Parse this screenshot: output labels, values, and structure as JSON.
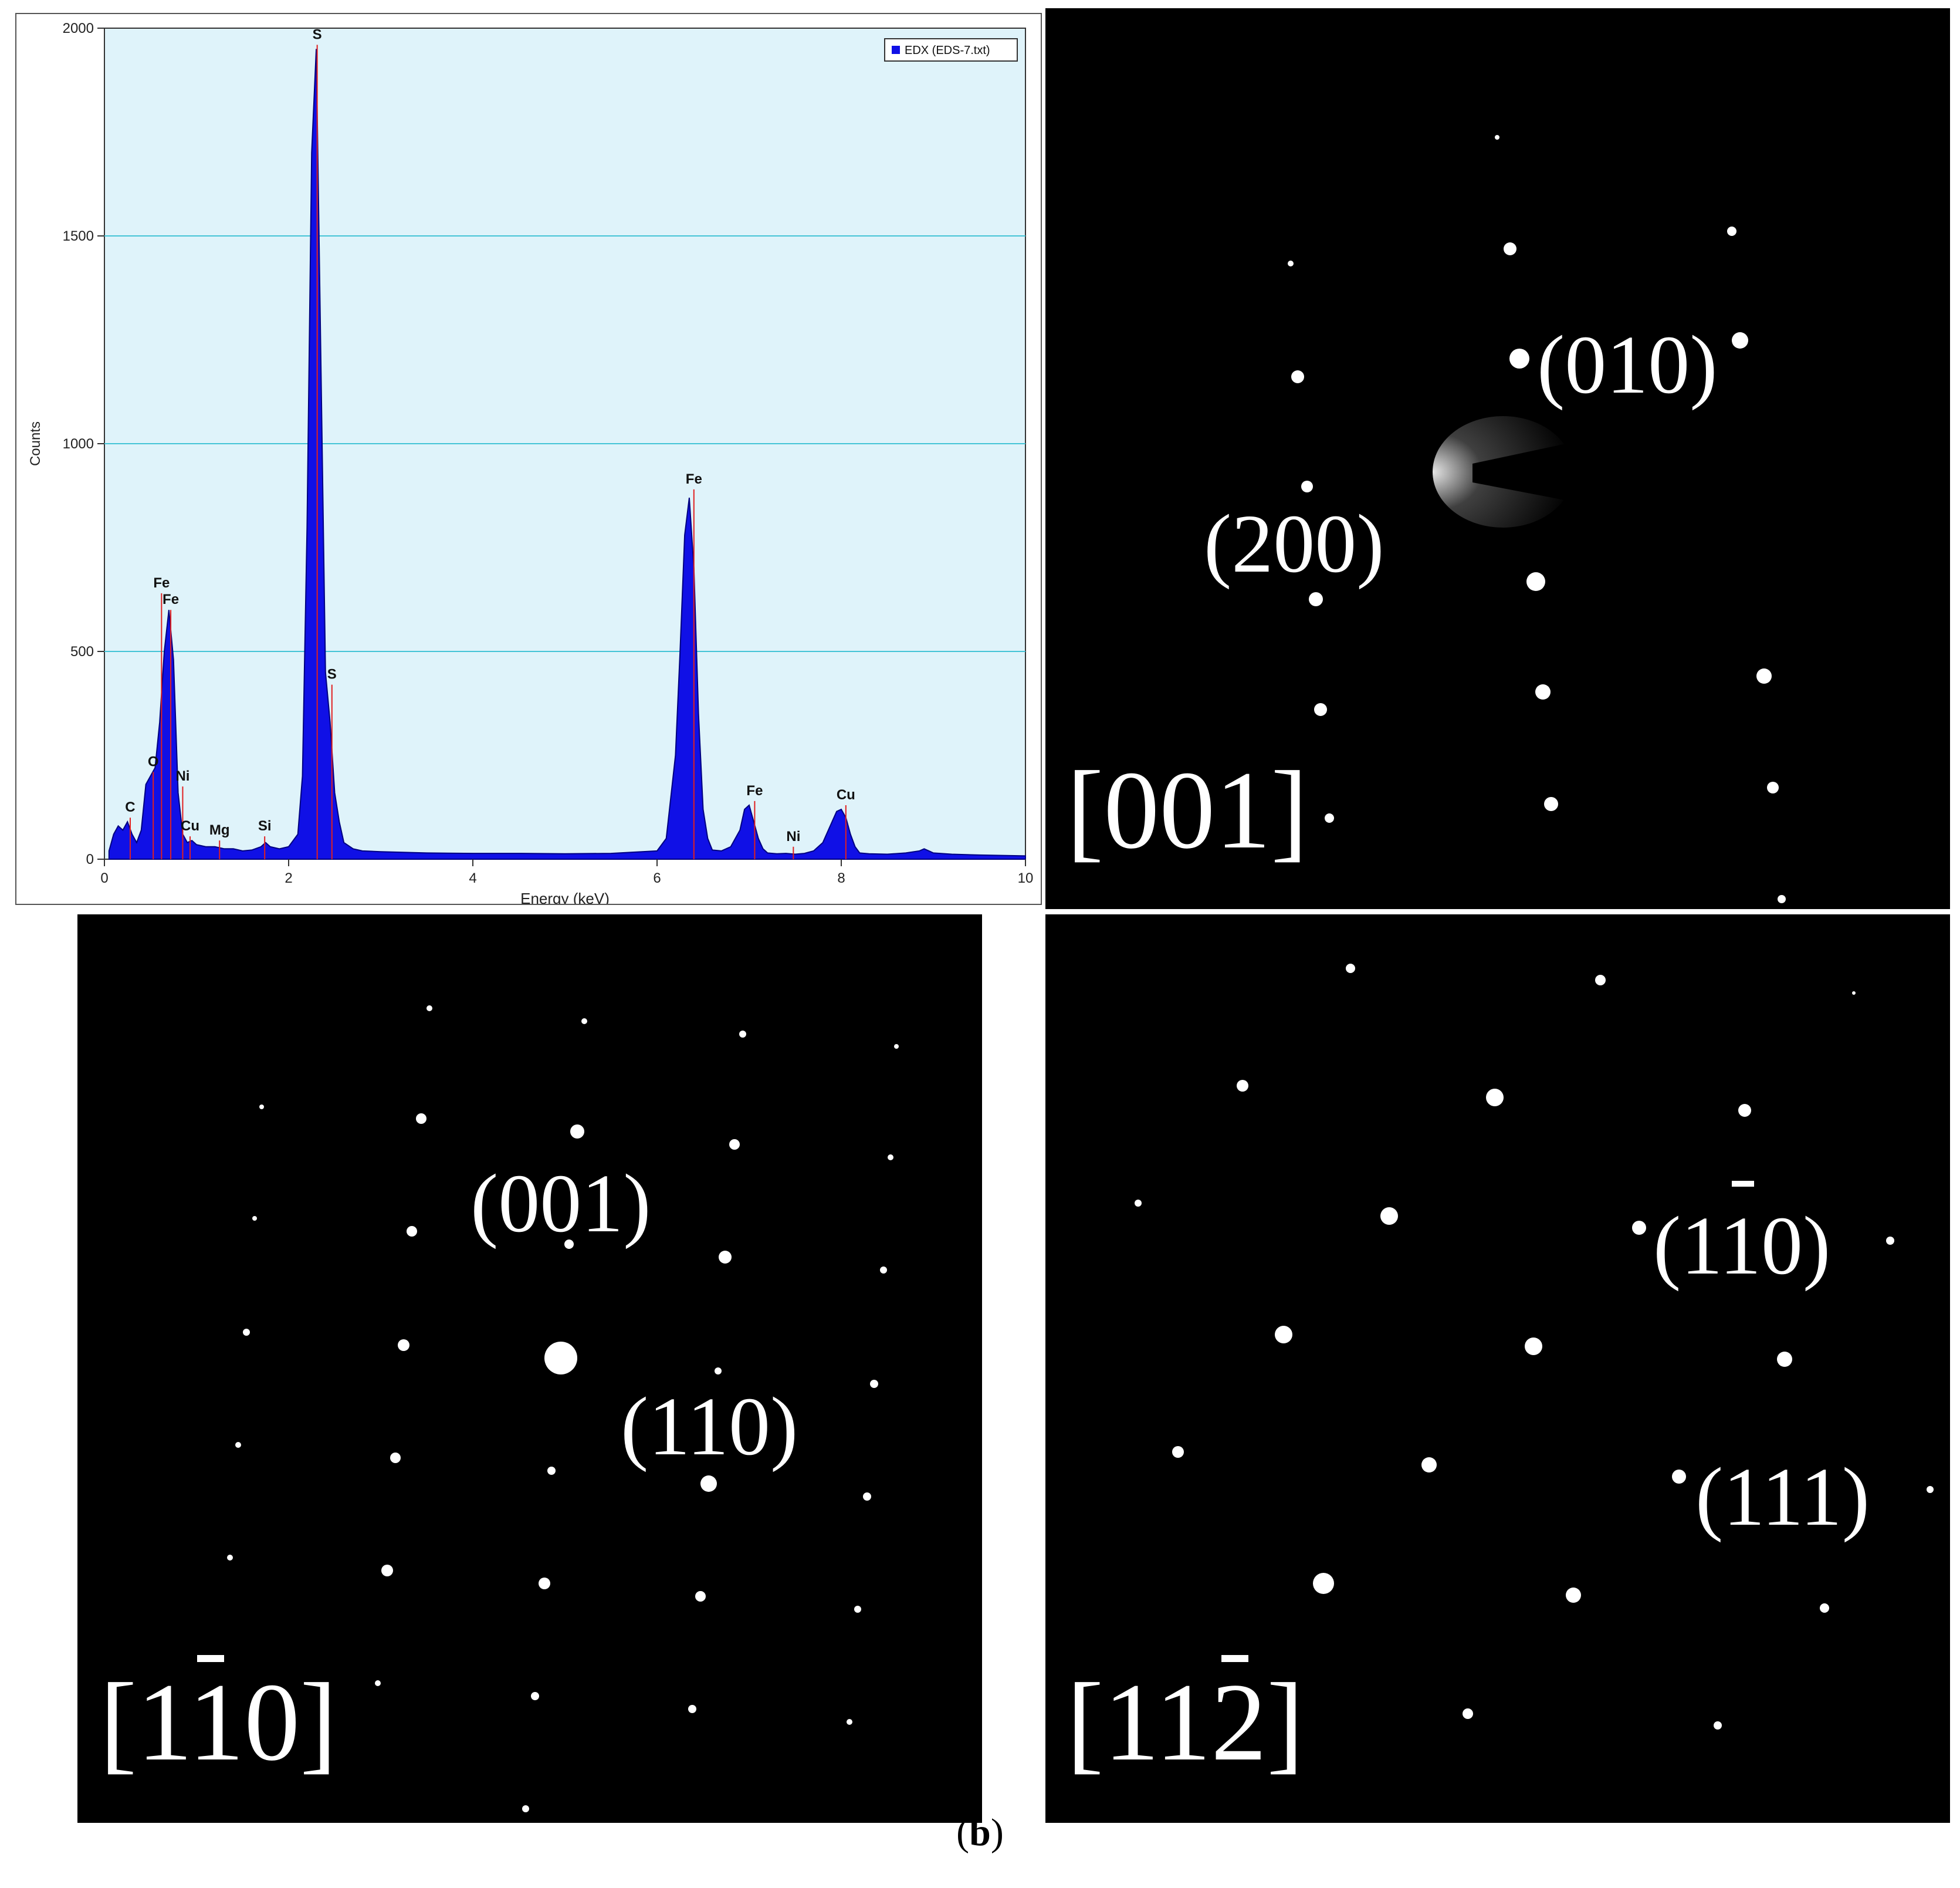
{
  "figure": {
    "caption_open": "(",
    "caption_letter": "b",
    "caption_close": ")"
  },
  "colors": {
    "plot_bg": "#dff3fa",
    "grid": "#44c4d6",
    "spectrum": "#1010e6",
    "spectrum_edge": "#000080",
    "peak_line": "#e02020"
  },
  "chart_data": {
    "type": "area",
    "xlabel": "Energy (keV)",
    "ylabel": "Counts",
    "xlim": [
      0,
      10
    ],
    "ylim": [
      0,
      2000
    ],
    "xticks": [
      0,
      2,
      4,
      6,
      8,
      10
    ],
    "yticks": [
      0,
      500,
      1000,
      1500,
      2000
    ],
    "grid": true,
    "legend_position": "top-right",
    "series": [
      {
        "name": "EDX (EDS-7.txt)",
        "x": [
          0.05,
          0.1,
          0.15,
          0.2,
          0.25,
          0.3,
          0.35,
          0.4,
          0.45,
          0.5,
          0.55,
          0.6,
          0.65,
          0.7,
          0.75,
          0.8,
          0.85,
          0.9,
          0.95,
          1.0,
          1.1,
          1.2,
          1.3,
          1.4,
          1.5,
          1.6,
          1.7,
          1.75,
          1.8,
          1.9,
          2.0,
          2.1,
          2.15,
          2.2,
          2.25,
          2.3,
          2.35,
          2.4,
          2.45,
          2.5,
          2.55,
          2.6,
          2.7,
          2.8,
          3.0,
          3.5,
          4.0,
          4.5,
          5.0,
          5.5,
          6.0,
          6.1,
          6.2,
          6.25,
          6.3,
          6.35,
          6.4,
          6.45,
          6.5,
          6.55,
          6.6,
          6.7,
          6.8,
          6.9,
          6.95,
          7.0,
          7.05,
          7.1,
          7.15,
          7.2,
          7.3,
          7.4,
          7.5,
          7.6,
          7.7,
          7.8,
          7.9,
          7.95,
          8.0,
          8.05,
          8.1,
          8.15,
          8.2,
          8.3,
          8.5,
          8.7,
          8.85,
          8.9,
          8.95,
          9.0,
          9.2,
          9.5,
          10.0
        ],
        "y": [
          20,
          60,
          80,
          70,
          90,
          60,
          40,
          70,
          180,
          200,
          220,
          330,
          500,
          600,
          480,
          160,
          60,
          40,
          45,
          35,
          30,
          30,
          25,
          25,
          20,
          22,
          30,
          40,
          30,
          25,
          30,
          60,
          200,
          800,
          1700,
          1950,
          1200,
          450,
          330,
          160,
          90,
          40,
          25,
          20,
          18,
          15,
          14,
          14,
          13,
          14,
          20,
          50,
          250,
          500,
          780,
          870,
          700,
          350,
          120,
          50,
          22,
          20,
          30,
          70,
          120,
          130,
          90,
          50,
          25,
          15,
          13,
          14,
          12,
          14,
          20,
          40,
          90,
          115,
          120,
          100,
          60,
          30,
          15,
          13,
          12,
          15,
          20,
          25,
          20,
          15,
          12,
          10,
          8
        ]
      }
    ],
    "peak_labels": [
      {
        "label": "C",
        "x": 0.28,
        "y": 100
      },
      {
        "label": "Fe",
        "x": 0.62,
        "y": 640
      },
      {
        "label": "Fe",
        "x": 0.72,
        "y": 600
      },
      {
        "label": "O",
        "x": 0.53,
        "y": 210
      },
      {
        "label": "Ni",
        "x": 0.85,
        "y": 175
      },
      {
        "label": "Cu",
        "x": 0.93,
        "y": 55
      },
      {
        "label": "Mg",
        "x": 1.25,
        "y": 45
      },
      {
        "label": "Si",
        "x": 1.74,
        "y": 55
      },
      {
        "label": "S",
        "x": 2.31,
        "y": 1960
      },
      {
        "label": "S",
        "x": 2.47,
        "y": 420
      },
      {
        "label": "Fe",
        "x": 6.4,
        "y": 890
      },
      {
        "label": "Fe",
        "x": 7.06,
        "y": 140
      },
      {
        "label": "Ni",
        "x": 7.48,
        "y": 30
      },
      {
        "label": "Cu",
        "x": 8.05,
        "y": 130
      }
    ],
    "peak_lines": [
      0.28,
      0.53,
      0.62,
      0.72,
      0.85,
      0.93,
      1.25,
      1.74,
      2.31,
      2.47,
      6.4,
      7.06,
      7.48,
      8.05
    ]
  },
  "saed": {
    "panel_001": {
      "zone_axis_open": "[",
      "zone_axis_digits": "001",
      "zone_axis_close": "]",
      "labels": [
        "(010)",
        "(200)"
      ]
    },
    "panel_1-10": {
      "zone_axis_open": "[",
      "zone_axis_parts": [
        "1",
        "1",
        "0"
      ],
      "zone_axis_bar_index": 1,
      "zone_axis_close": "]",
      "label_001": "(001)",
      "label_110_parts": [
        "(",
        "1",
        "1",
        "0",
        ")"
      ]
    },
    "panel_11-2": {
      "zone_axis_open": "[",
      "zone_axis_parts": [
        "1",
        "1",
        "2"
      ],
      "zone_axis_bar_index": 2,
      "zone_axis_close": "]",
      "label_1-10_parts": [
        "(",
        "1",
        "1",
        "0",
        ")"
      ],
      "label_111": "(111)"
    }
  }
}
